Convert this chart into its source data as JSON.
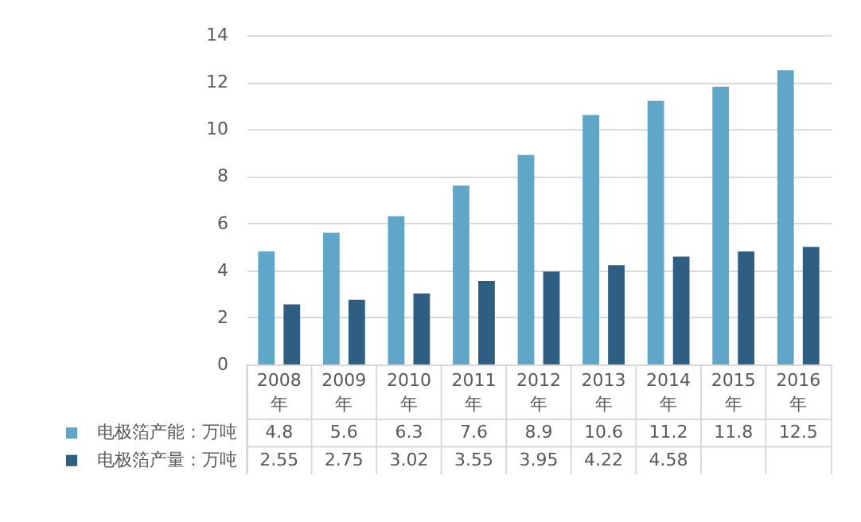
{
  "chart_data": {
    "type": "bar",
    "categories": [
      "2008年",
      "2009年",
      "2010年",
      "2011年",
      "2012年",
      "2013年",
      "2014年",
      "2015年",
      "2016年"
    ],
    "series": [
      {
        "name": "电极箔产能：万吨",
        "color": "#5fa6c9",
        "values": [
          4.8,
          5.6,
          6.3,
          7.6,
          8.9,
          10.6,
          11.2,
          11.8,
          12.5
        ],
        "value_labels": [
          "4.8",
          "5.6",
          "6.3",
          "7.6",
          "8.9",
          "10.6",
          "11.2",
          "11.8",
          "12.5"
        ]
      },
      {
        "name": "电极箔产量：万吨",
        "color": "#2e5f82",
        "values": [
          2.55,
          2.75,
          3.02,
          3.55,
          3.95,
          4.22,
          4.58,
          4.8,
          5.0
        ],
        "value_labels": [
          "2.55",
          "2.75",
          "3.02",
          "3.55",
          "3.95",
          "4.22",
          "4.58",
          null,
          null
        ]
      }
    ],
    "ylim": [
      0,
      14
    ],
    "yticks": [
      0,
      2,
      4,
      6,
      8,
      10,
      12,
      14
    ],
    "grid": "y",
    "legend": "bottom left"
  }
}
